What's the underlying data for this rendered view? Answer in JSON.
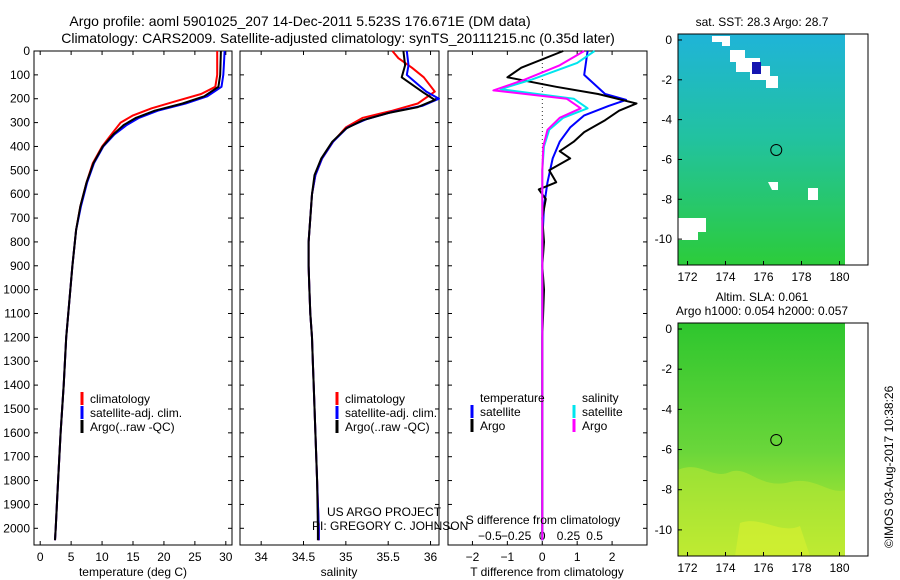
{
  "titles": {
    "line1": "Argo profile: aoml 5901025_207 14-Dec-2011 5.523S 176.671E (DM data)",
    "line2": "Climatology: CARS2009. Satellite-adjusted climatology: synTS_20111215.nc (0.35d later)"
  },
  "credits": {
    "project": "US ARGO PROJECT",
    "pi": "PI: GREGORY C. JOHNSON",
    "imos": "©IMOS 03-Aug-2017 10:38:26"
  },
  "colors": {
    "climatology": "#ff0000",
    "satellite": "#0000ff",
    "argo": "#000000",
    "salinity_satellite": "#00e5ee",
    "salinity_argo": "#ff00ff",
    "sst_map_top": "#22b8d2",
    "sst_map_bottom": "#22c84a",
    "sla_map_top": "#33cc33",
    "sla_map_bottom": "#c6ec2e"
  },
  "chart_data": [
    {
      "type": "line",
      "id": "temperature",
      "xlabel": "temperature (deg C)",
      "xlim": [
        -1,
        31
      ],
      "ylim": [
        0,
        2070
      ],
      "xticks": [
        0,
        5,
        10,
        15,
        20,
        25,
        30
      ],
      "yticks": [
        0,
        100,
        200,
        300,
        400,
        500,
        600,
        700,
        800,
        900,
        1000,
        1100,
        1200,
        1300,
        1400,
        1500,
        1600,
        1700,
        1800,
        1900,
        2000
      ],
      "legend": [
        "climatology",
        "satellite-adj. clim.",
        "Argo(..raw -QC)"
      ],
      "series": [
        {
          "name": "climatology",
          "color": "#ff0000",
          "points": [
            [
              28.6,
              0
            ],
            [
              28.6,
              100
            ],
            [
              28.3,
              150
            ],
            [
              26,
              180
            ],
            [
              22,
              210
            ],
            [
              18,
              240
            ],
            [
              15,
              270
            ],
            [
              13,
              300
            ],
            [
              11.5,
              350
            ],
            [
              10,
              400
            ],
            [
              8.5,
              470
            ],
            [
              7.5,
              550
            ],
            [
              6.5,
              650
            ],
            [
              5.8,
              750
            ],
            [
              5.2,
              900
            ],
            [
              4.7,
              1050
            ],
            [
              4.2,
              1200
            ],
            [
              3.8,
              1400
            ],
            [
              3.3,
              1600
            ],
            [
              2.9,
              1800
            ],
            [
              2.5,
              2000
            ],
            [
              2.4,
              2050
            ]
          ]
        },
        {
          "name": "satellite-adj. clim.",
          "color": "#0000ff",
          "points": [
            [
              29.8,
              0
            ],
            [
              29.7,
              50
            ],
            [
              29.6,
              100
            ],
            [
              29.3,
              150
            ],
            [
              27,
              190
            ],
            [
              23.5,
              220
            ],
            [
              19,
              250
            ],
            [
              16,
              280
            ],
            [
              14,
              310
            ],
            [
              12,
              350
            ],
            [
              10.2,
              400
            ],
            [
              8.7,
              470
            ],
            [
              7.6,
              550
            ],
            [
              6.6,
              650
            ],
            [
              5.8,
              750
            ],
            [
              5.2,
              900
            ],
            [
              4.7,
              1050
            ],
            [
              4.2,
              1200
            ],
            [
              3.8,
              1400
            ],
            [
              3.3,
              1600
            ],
            [
              2.9,
              1800
            ],
            [
              2.5,
              2000
            ],
            [
              2.4,
              2050
            ]
          ]
        },
        {
          "name": "Argo(..raw -QC)",
          "color": "#000000",
          "points": [
            [
              29.2,
              0
            ],
            [
              29.1,
              100
            ],
            [
              28.8,
              150
            ],
            [
              26.5,
              190
            ],
            [
              23,
              220
            ],
            [
              18.5,
              250
            ],
            [
              15.5,
              280
            ],
            [
              13.5,
              310
            ],
            [
              11.8,
              350
            ],
            [
              10.1,
              400
            ],
            [
              8.6,
              470
            ],
            [
              7.5,
              550
            ],
            [
              6.5,
              650
            ],
            [
              5.8,
              750
            ],
            [
              5.2,
              900
            ],
            [
              4.7,
              1050
            ],
            [
              4.2,
              1200
            ],
            [
              3.8,
              1400
            ],
            [
              3.3,
              1600
            ],
            [
              2.9,
              1800
            ],
            [
              2.5,
              2000
            ],
            [
              2.4,
              2050
            ]
          ]
        }
      ]
    },
    {
      "type": "line",
      "id": "salinity",
      "xlabel": "salinity",
      "xlim": [
        33.75,
        36.1
      ],
      "ylim": [
        0,
        2070
      ],
      "xticks": [
        34,
        34.5,
        35,
        35.5,
        36
      ],
      "xticklabels": [
        "34",
        "34.5",
        "35",
        "35.5",
        "36"
      ],
      "legend": [
        "climatology",
        "satellite-adj. clim.",
        "Argo(..raw -QC)"
      ],
      "series": [
        {
          "name": "climatology",
          "color": "#ff0000",
          "points": [
            [
              35.55,
              0
            ],
            [
              35.62,
              30
            ],
            [
              35.78,
              70
            ],
            [
              35.92,
              110
            ],
            [
              36.05,
              170
            ],
            [
              35.85,
              220
            ],
            [
              35.55,
              250
            ],
            [
              35.2,
              280
            ],
            [
              35.0,
              320
            ],
            [
              34.85,
              380
            ],
            [
              34.72,
              450
            ],
            [
              34.64,
              520
            ],
            [
              34.6,
              600
            ],
            [
              34.58,
              700
            ],
            [
              34.56,
              800
            ],
            [
              34.56,
              900
            ],
            [
              34.57,
              1000
            ],
            [
              34.58,
              1100
            ],
            [
              34.6,
              1200
            ],
            [
              34.61,
              1300
            ],
            [
              34.62,
              1400
            ],
            [
              34.64,
              1600
            ],
            [
              34.66,
              1800
            ],
            [
              34.68,
              2000
            ],
            [
              34.68,
              2050
            ]
          ]
        },
        {
          "name": "satellite-adj. clim.",
          "color": "#0000ff",
          "points": [
            [
              35.72,
              0
            ],
            [
              35.74,
              60
            ],
            [
              35.72,
              100
            ],
            [
              35.95,
              170
            ],
            [
              36.1,
              200
            ],
            [
              35.9,
              230
            ],
            [
              35.55,
              255
            ],
            [
              35.25,
              285
            ],
            [
              35.02,
              320
            ],
            [
              34.85,
              380
            ],
            [
              34.72,
              450
            ],
            [
              34.64,
              520
            ],
            [
              34.6,
              600
            ],
            [
              34.58,
              700
            ],
            [
              34.56,
              800
            ],
            [
              34.56,
              900
            ],
            [
              34.57,
              1000
            ],
            [
              34.58,
              1100
            ],
            [
              34.6,
              1200
            ],
            [
              34.61,
              1300
            ],
            [
              34.62,
              1400
            ],
            [
              34.64,
              1600
            ],
            [
              34.66,
              1800
            ],
            [
              34.68,
              2000
            ],
            [
              34.68,
              2050
            ]
          ]
        },
        {
          "name": "Argo(..raw -QC)",
          "color": "#000000",
          "points": [
            [
              35.68,
              0
            ],
            [
              35.7,
              60
            ],
            [
              35.66,
              110
            ],
            [
              35.92,
              175
            ],
            [
              36.05,
              205
            ],
            [
              35.85,
              235
            ],
            [
              35.5,
              260
            ],
            [
              35.2,
              290
            ],
            [
              35.0,
              325
            ],
            [
              34.84,
              380
            ],
            [
              34.71,
              450
            ],
            [
              34.63,
              520
            ],
            [
              34.6,
              600
            ],
            [
              34.58,
              700
            ],
            [
              34.56,
              800
            ],
            [
              34.56,
              900
            ],
            [
              34.57,
              1000
            ],
            [
              34.58,
              1100
            ],
            [
              34.6,
              1200
            ],
            [
              34.61,
              1300
            ],
            [
              34.62,
              1400
            ],
            [
              34.64,
              1600
            ],
            [
              34.66,
              1800
            ],
            [
              34.67,
              2000
            ],
            [
              34.67,
              2050
            ]
          ]
        }
      ]
    },
    {
      "type": "line",
      "id": "difference",
      "xlabel": "T difference from climatology",
      "xlabel_top": "S difference from climatology",
      "xlim": [
        -2.7,
        3.0
      ],
      "ylim": [
        0,
        2070
      ],
      "xticks": [
        -2,
        -1,
        0,
        1,
        2
      ],
      "xticklabels": [
        "−2",
        "−1",
        "0",
        "1",
        "2"
      ],
      "sticks": [
        -1.5,
        -0.75,
        0,
        0.75,
        1.5
      ],
      "sticklabels": [
        "−0.5",
        "−0.25",
        "0",
        "0.25",
        "0.5"
      ],
      "legend": {
        "temperature_title": "temperature",
        "salinity_title": "salinity",
        "satellite": "satellite",
        "argo": "Argo"
      },
      "series": [
        {
          "name": "temperature satellite",
          "color": "#0000ff",
          "points": [
            [
              1.3,
              0
            ],
            [
              1.2,
              100
            ],
            [
              1.8,
              180
            ],
            [
              2.4,
              205
            ],
            [
              1.9,
              230
            ],
            [
              1.2,
              270
            ],
            [
              0.8,
              320
            ],
            [
              0.5,
              380
            ],
            [
              0.3,
              450
            ],
            [
              0.15,
              550
            ],
            [
              0.05,
              650
            ],
            [
              0,
              800
            ],
            [
              0,
              1000
            ],
            [
              0,
              1200
            ],
            [
              0,
              1400
            ],
            [
              0,
              1600
            ],
            [
              0,
              1800
            ],
            [
              0,
              2050
            ]
          ]
        },
        {
          "name": "temperature Argo",
          "color": "#000000",
          "points": [
            [
              0.6,
              0
            ],
            [
              -0.6,
              70
            ],
            [
              -1.0,
              110
            ],
            [
              0.4,
              150
            ],
            [
              1.6,
              180
            ],
            [
              2.7,
              220
            ],
            [
              2.2,
              250
            ],
            [
              1.8,
              290
            ],
            [
              1.2,
              340
            ],
            [
              0.9,
              380
            ],
            [
              0.5,
              420
            ],
            [
              0.8,
              450
            ],
            [
              0.2,
              500
            ],
            [
              0.4,
              550
            ],
            [
              -0.1,
              580
            ],
            [
              0.1,
              620
            ],
            [
              0,
              700
            ],
            [
              0.05,
              800
            ],
            [
              0,
              900
            ],
            [
              0.05,
              1000
            ],
            [
              0,
              1200
            ],
            [
              0,
              1400
            ],
            [
              0,
              1600
            ],
            [
              0,
              1800
            ],
            [
              0,
              2050
            ]
          ]
        },
        {
          "name": "salinity satellite",
          "color": "#00e5ee",
          "points": [
            [
              1.5,
              0
            ],
            [
              1.0,
              50
            ],
            [
              -0.3,
              120
            ],
            [
              -1.2,
              160
            ],
            [
              0.9,
              200
            ],
            [
              1.3,
              240
            ],
            [
              0.6,
              280
            ],
            [
              0.2,
              330
            ],
            [
              0.05,
              400
            ],
            [
              0,
              500
            ],
            [
              0,
              700
            ],
            [
              0,
              900
            ],
            [
              0,
              1100
            ],
            [
              0,
              1300
            ],
            [
              0,
              1500
            ],
            [
              0,
              1700
            ],
            [
              0,
              1900
            ],
            [
              0,
              2050
            ]
          ]
        },
        {
          "name": "salinity Argo",
          "color": "#ff00ff",
          "points": [
            [
              1.2,
              0
            ],
            [
              0.5,
              60
            ],
            [
              -0.5,
              120
            ],
            [
              -1.4,
              165
            ],
            [
              0.7,
              200
            ],
            [
              1.1,
              240
            ],
            [
              0.5,
              280
            ],
            [
              0.15,
              330
            ],
            [
              0.03,
              400
            ],
            [
              0,
              500
            ],
            [
              0,
              700
            ],
            [
              0,
              900
            ],
            [
              0,
              1100
            ],
            [
              0,
              1300
            ],
            [
              0,
              1500
            ],
            [
              0,
              1700
            ],
            [
              0,
              1900
            ],
            [
              0,
              2050
            ]
          ]
        }
      ]
    },
    {
      "type": "heatmap",
      "id": "sst_map",
      "title": "sat. SST: 28.3 Argo: 28.7",
      "xticks": [
        172,
        174,
        176,
        178,
        180
      ],
      "yticks": [
        0,
        -2,
        -4,
        -6,
        -8,
        -10
      ],
      "xlim": [
        171.5,
        181.5
      ],
      "ylim": [
        -11.3,
        0.3
      ],
      "profile_location": [
        176.671,
        -5.523
      ]
    },
    {
      "type": "heatmap",
      "id": "sla_map",
      "title_line1": "Altim. SLA: 0.061",
      "title_line2": "Argo h1000: 0.054 h2000: 0.057",
      "xticks": [
        172,
        174,
        176,
        178,
        180
      ],
      "yticks": [
        0,
        -2,
        -4,
        -6,
        -8,
        -10
      ],
      "xlim": [
        171.5,
        181.5
      ],
      "ylim": [
        -11.3,
        0.3
      ],
      "profile_location": [
        176.671,
        -5.523
      ]
    }
  ]
}
